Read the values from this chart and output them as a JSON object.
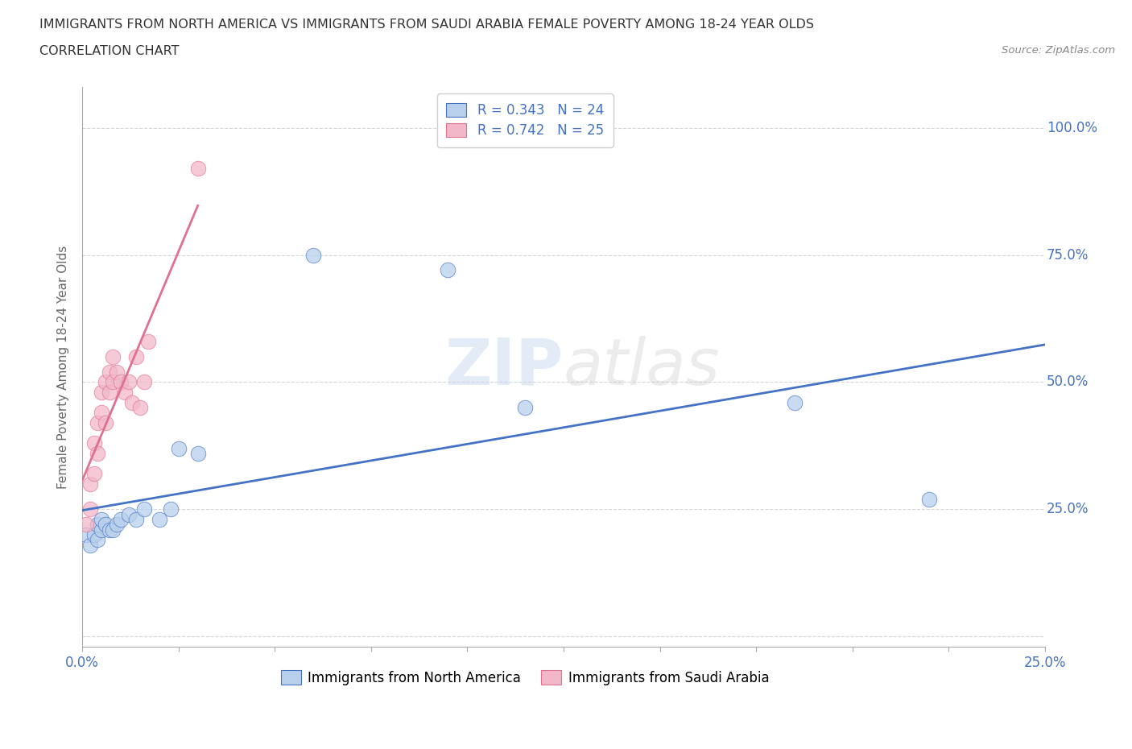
{
  "title_line1": "IMMIGRANTS FROM NORTH AMERICA VS IMMIGRANTS FROM SAUDI ARABIA FEMALE POVERTY AMONG 18-24 YEAR OLDS",
  "title_line2": "CORRELATION CHART",
  "source": "Source: ZipAtlas.com",
  "ylabel": "Female Poverty Among 18-24 Year Olds",
  "watermark": "ZIPatlas",
  "xlim": [
    0.0,
    0.25
  ],
  "ylim": [
    -0.02,
    1.08
  ],
  "legend_labels": [
    "Immigrants from North America",
    "Immigrants from Saudi Arabia"
  ],
  "blue_R": "0.343",
  "blue_N": "24",
  "pink_R": "0.742",
  "pink_N": "25",
  "blue_color": "#b8d0eb",
  "pink_color": "#f2b8c9",
  "blue_line_color": "#4472c4",
  "pink_line_color": "#e07090",
  "blue_scatter_x": [
    0.001,
    0.002,
    0.003,
    0.004,
    0.004,
    0.005,
    0.005,
    0.006,
    0.007,
    0.008,
    0.009,
    0.01,
    0.012,
    0.014,
    0.016,
    0.02,
    0.023,
    0.025,
    0.03,
    0.06,
    0.095,
    0.115,
    0.185,
    0.22
  ],
  "blue_scatter_y": [
    0.2,
    0.18,
    0.2,
    0.22,
    0.19,
    0.21,
    0.23,
    0.22,
    0.21,
    0.21,
    0.22,
    0.23,
    0.24,
    0.23,
    0.25,
    0.23,
    0.25,
    0.37,
    0.36,
    0.75,
    0.72,
    0.45,
    0.46,
    0.27
  ],
  "pink_scatter_x": [
    0.001,
    0.002,
    0.002,
    0.003,
    0.003,
    0.004,
    0.004,
    0.005,
    0.005,
    0.006,
    0.006,
    0.007,
    0.007,
    0.008,
    0.008,
    0.009,
    0.01,
    0.011,
    0.012,
    0.013,
    0.014,
    0.015,
    0.016,
    0.017,
    0.03
  ],
  "pink_scatter_y": [
    0.22,
    0.25,
    0.3,
    0.32,
    0.38,
    0.36,
    0.42,
    0.44,
    0.48,
    0.42,
    0.5,
    0.48,
    0.52,
    0.5,
    0.55,
    0.52,
    0.5,
    0.48,
    0.5,
    0.46,
    0.55,
    0.45,
    0.5,
    0.58,
    0.92
  ],
  "background_color": "#ffffff",
  "grid_color": "#cccccc",
  "title_color": "#333333",
  "axis_label_color": "#666666",
  "tick_label_color": "#4472c4"
}
